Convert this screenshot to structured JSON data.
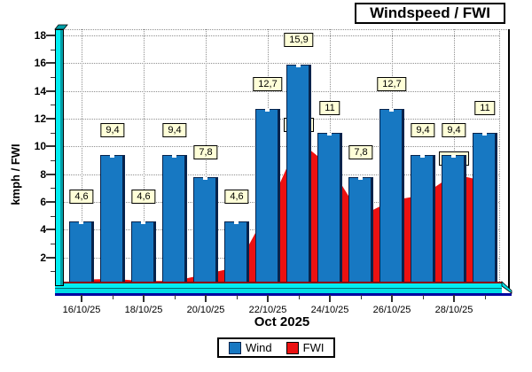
{
  "title": "Windspeed / FWI",
  "y_axis": {
    "label": "kmph / FWI",
    "ticks": [
      2,
      4,
      6,
      8,
      10,
      12,
      14,
      16,
      18
    ]
  },
  "x_axis": {
    "label": "Oct 2025",
    "tick_labels": [
      "16/10/25",
      "18/10/25",
      "20/10/25",
      "22/10/25",
      "24/10/25",
      "26/10/25",
      "28/10/25"
    ]
  },
  "legend": {
    "items": [
      {
        "label": "Wind",
        "color": "#1778c2"
      },
      {
        "label": "FWI",
        "color": "#ec1111"
      }
    ]
  },
  "chart_data": {
    "type": "combo",
    "title": "Windspeed / FWI",
    "xlabel": "Oct 2025",
    "ylabel": "kmph / FWI",
    "ylim": [
      0,
      18.5
    ],
    "grid": true,
    "legend_position": "bottom",
    "categories": [
      "16/10/25",
      "17/10/25",
      "18/10/25",
      "19/10/25",
      "20/10/25",
      "21/10/25",
      "22/10/25",
      "23/10/25",
      "24/10/25",
      "25/10/25",
      "26/10/25",
      "27/10/25",
      "28/10/25",
      "29/10/25"
    ],
    "series": [
      {
        "name": "Wind",
        "type": "bar",
        "color": "#1778c2",
        "values": [
          4.6,
          9.4,
          4.6,
          9.4,
          7.8,
          4.6,
          12.7,
          15.9,
          11,
          7.8,
          12.7,
          9.4,
          9.4,
          11
        ],
        "value_labels": [
          "4,6",
          "9,4",
          "4,6",
          "9,4",
          "7,8",
          "4,6",
          "12,7",
          "15,9",
          "11",
          "7,8",
          "12,7",
          "9,4",
          "9,4",
          "11"
        ]
      },
      {
        "name": "FWI",
        "type": "area",
        "color": "#ec1111",
        "values": [
          0.4,
          0.45,
          0.3,
          0.3,
          0.8,
          1.3,
          5.4,
          10.4,
          8.6,
          5.0,
          6.1,
          6.5,
          8.0,
          7.5
        ],
        "visible_mark_indexes": [
          7,
          12
        ]
      }
    ]
  },
  "colors": {
    "bar_fill": "#1778c2",
    "bar_border": "#07234c",
    "area_fill": "#ec1111",
    "axis_band_light": "#00eef2",
    "axis_band_mid": "#00dce4",
    "axis_band_dark": "#00a0a8",
    "axis_band_divider": "#006a70",
    "axis_bottom_line": "#0000a0",
    "axis_top_line": "#8b0000",
    "grid": "#909090",
    "tick": "#333333",
    "label_box_bg": "#ffffd8",
    "label_box_border": "#000000"
  }
}
